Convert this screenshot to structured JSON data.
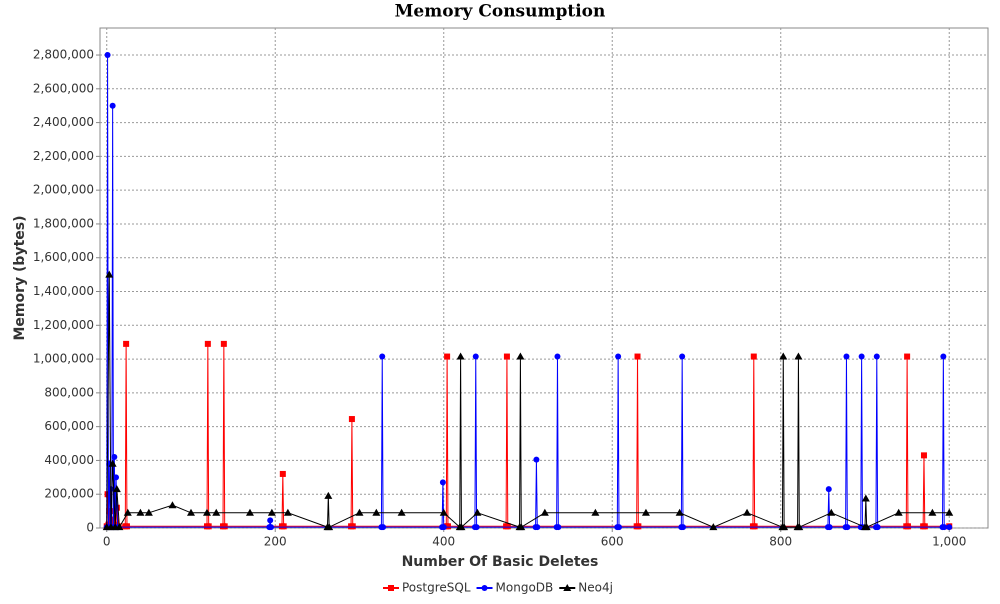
{
  "chart_data": {
    "type": "line",
    "title": "Memory Consumption",
    "x_label": "Number Of Basic Deletes",
    "y_label": "Memory (bytes)",
    "xlim": [
      -8,
      1046
    ],
    "ylim": [
      0,
      2960000
    ],
    "xticks": [
      0,
      200,
      400,
      600,
      800,
      {
        "value": 1000,
        "label": "1,000"
      }
    ],
    "yticks": [
      0,
      {
        "value": 200000,
        "label": "200,000"
      },
      {
        "value": 400000,
        "label": "400,000"
      },
      {
        "value": 600000,
        "label": "600,000"
      },
      {
        "value": 800000,
        "label": "800,000"
      },
      {
        "value": 1000000,
        "label": "1,000,000"
      },
      {
        "value": 1200000,
        "label": "1,200,000"
      },
      {
        "value": 1400000,
        "label": "1,400,000"
      },
      {
        "value": 1600000,
        "label": "1,600,000"
      },
      {
        "value": 1800000,
        "label": "1,800,000"
      },
      {
        "value": 2000000,
        "label": "2,000,000"
      },
      {
        "value": 2200000,
        "label": "2,200,000"
      },
      {
        "value": 2400000,
        "label": "2,400,000"
      },
      {
        "value": 2600000,
        "label": "2,600,000"
      },
      {
        "value": 2800000,
        "label": "2,800,000"
      }
    ],
    "grid": true,
    "legend": "bottom",
    "series": [
      {
        "name": "PostgreSQL",
        "color": "#ff0000",
        "marker": "square",
        "x": [
          0,
          1,
          2,
          3,
          4,
          5,
          8,
          10,
          11,
          12,
          14,
          22,
          23,
          24,
          119,
          120,
          121,
          138,
          139,
          140,
          208,
          209,
          210,
          290,
          291,
          292,
          403,
          404,
          405,
          474,
          475,
          476,
          629,
          630,
          631,
          767,
          768,
          769,
          949,
          950,
          951,
          969,
          970,
          971,
          1000
        ],
        "values": [
          10000,
          200000,
          20000,
          100000,
          20000,
          50000,
          20000,
          100000,
          20000,
          120000,
          10000,
          10000,
          1090000,
          10000,
          10000,
          1090000,
          10000,
          10000,
          1090000,
          10000,
          10000,
          320000,
          10000,
          10000,
          645000,
          10000,
          10000,
          1015000,
          10000,
          10000,
          1015000,
          10000,
          10000,
          1015000,
          10000,
          10000,
          1015000,
          10000,
          10000,
          1015000,
          10000,
          10000,
          430000,
          10000,
          10000
        ]
      },
      {
        "name": "MongoDB",
        "color": "#0000ff",
        "marker": "circle",
        "x": [
          0,
          1,
          2,
          3,
          4,
          5,
          6,
          7,
          8,
          9,
          10,
          11,
          13,
          193,
          194,
          195,
          326,
          327,
          328,
          398,
          399,
          400,
          437,
          438,
          439,
          509,
          510,
          511,
          534,
          535,
          536,
          606,
          607,
          608,
          682,
          683,
          684,
          856,
          857,
          858,
          877,
          878,
          879,
          895,
          896,
          897,
          913,
          914,
          915,
          992,
          993,
          994,
          1000
        ],
        "values": [
          5000,
          2800000,
          5000,
          380000,
          5000,
          230000,
          5000,
          2500000,
          5000,
          420000,
          5000,
          300000,
          5000,
          5000,
          45000,
          5000,
          5000,
          1015000,
          5000,
          5000,
          270000,
          5000,
          5000,
          1015000,
          5000,
          5000,
          405000,
          5000,
          5000,
          1015000,
          5000,
          5000,
          1015000,
          5000,
          5000,
          1015000,
          5000,
          5000,
          230000,
          5000,
          5000,
          1015000,
          5000,
          5000,
          1015000,
          5000,
          5000,
          1015000,
          5000,
          5000,
          1015000,
          5000,
          5000
        ]
      },
      {
        "name": "Neo4j",
        "color": "#000000",
        "marker": "triangle",
        "x": [
          0,
          3,
          5,
          7,
          10,
          12,
          15,
          25,
          40,
          50,
          78,
          100,
          119,
          130,
          170,
          196,
          215,
          262,
          263,
          264,
          300,
          320,
          350,
          400,
          419,
          420,
          421,
          440,
          490,
          491,
          492,
          520,
          580,
          640,
          680,
          720,
          760,
          802,
          803,
          804,
          820,
          821,
          822,
          860,
          900,
          901,
          902,
          940,
          980,
          1000
        ],
        "values": [
          5000,
          1500000,
          5000,
          380000,
          5000,
          230000,
          5000,
          90000,
          90000,
          90000,
          135000,
          90000,
          90000,
          90000,
          90000,
          90000,
          90000,
          5000,
          190000,
          5000,
          90000,
          90000,
          90000,
          90000,
          5000,
          1015000,
          5000,
          90000,
          5000,
          1015000,
          5000,
          90000,
          90000,
          90000,
          90000,
          5000,
          90000,
          5000,
          1015000,
          5000,
          5000,
          1015000,
          5000,
          90000,
          5000,
          175000,
          5000,
          90000,
          90000,
          90000
        ]
      }
    ]
  }
}
